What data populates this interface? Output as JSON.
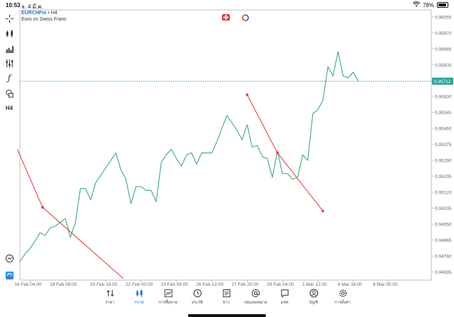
{
  "status_bar": {
    "time": "10:53",
    "date": "จ. 4 มี.ค.",
    "battery": "78%",
    "battery_level": 0.78
  },
  "header": {
    "symbol": "EURCHFm",
    "separator": " • ",
    "timeframe": "H4",
    "description": "Euro vs Swiss Franc"
  },
  "toolbar": [
    {
      "name": "crosshair-icon"
    },
    {
      "name": "candles-icon"
    },
    {
      "name": "bar-chart-icon"
    },
    {
      "name": "indicators-icon"
    },
    {
      "name": "function-icon",
      "glyph": "ƒ"
    },
    {
      "name": "objects-icon"
    },
    {
      "name": "timeframe-button",
      "label": "H4"
    }
  ],
  "colors": {
    "line": "#4caf8a",
    "current_price": "#26a69a",
    "trendline": "#e53935",
    "accent": "#1a73e8"
  },
  "chart_data": {
    "type": "line",
    "current_price": "0.95712",
    "y_ticks": [
      "0.96055",
      "0.95970",
      "0.95885",
      "0.95800",
      "0.95715",
      "0.95630",
      "0.95545",
      "0.95460",
      "0.95375",
      "0.95290",
      "0.95205",
      "0.95120",
      "0.95035",
      "0.94950",
      "0.94865",
      "0.94780",
      "0.94695"
    ],
    "x_ticks": [
      "16 Feb 04:00",
      "19 Feb 08:00",
      "20 Feb 16:00",
      "22 Feb 00:00",
      "23 Feb 08:00",
      "26 Feb 12:00",
      "27 Feb 20:00",
      "29 Feb 04:00",
      "1 Mar 12:00",
      "4 Mar 16:00",
      "6 Mar 00:00"
    ],
    "x_tick_index": [
      2,
      9,
      17,
      24,
      31,
      38,
      45,
      52,
      59,
      66,
      73
    ],
    "ylim": [
      0.94652,
      0.96092
    ],
    "series": [
      {
        "values": [
          0.9475,
          0.9479,
          0.9482,
          0.9486,
          0.94905,
          0.9489,
          0.9493,
          0.9494,
          0.9496,
          0.9498,
          0.9488,
          0.9496,
          0.9514,
          0.9514,
          0.9508,
          0.9517,
          0.9521,
          0.9525,
          0.9529,
          0.9533,
          0.9524,
          0.9519,
          0.9506,
          0.9515,
          0.9515,
          0.9513,
          0.9513,
          0.9507,
          0.9528,
          0.9532,
          0.9535,
          0.953,
          0.9526,
          0.9532,
          0.9533,
          0.9527,
          0.9533,
          0.9533,
          0.9533,
          0.9539,
          0.9546,
          0.9553,
          0.9549,
          0.9545,
          0.954,
          0.9548,
          0.9536,
          0.9537,
          0.9531,
          0.953,
          0.952,
          0.9534,
          0.9522,
          0.9522,
          0.9519,
          0.952,
          0.9532,
          0.9529,
          0.9554,
          0.9556,
          0.9561,
          0.9579,
          0.9574,
          0.9587,
          0.9574,
          0.9573,
          0.9576,
          0.95712
        ]
      }
    ],
    "trendlines": [
      {
        "points": [
          [
            -0.5,
            0.9535
          ],
          [
            4.5,
            0.9504
          ],
          [
            20.5,
            0.9466
          ]
        ]
      },
      {
        "points": [
          [
            45,
            0.9564
          ],
          [
            51,
            0.9533
          ],
          [
            60,
            0.9502
          ]
        ]
      }
    ]
  },
  "nav": [
    {
      "name": "nav-quotes",
      "label": "ราคา",
      "icon": "arrows-icon"
    },
    {
      "name": "nav-chart",
      "label": "กราฟ",
      "icon": "chart-icon",
      "active": true
    },
    {
      "name": "nav-trade",
      "label": "การซื้อขาย",
      "icon": "trade-icon"
    },
    {
      "name": "nav-history",
      "label": "ประวัติ",
      "icon": "history-icon"
    },
    {
      "name": "nav-news",
      "label": "ข่าว",
      "icon": "news-icon"
    },
    {
      "name": "nav-mailbox",
      "label": "กล่องจดหมาย",
      "icon": "mail-icon"
    },
    {
      "name": "nav-chat",
      "label": "แชท",
      "icon": "chat-icon"
    },
    {
      "name": "nav-accounts",
      "label": "บัญชี",
      "icon": "account-icon"
    },
    {
      "name": "nav-settings",
      "label": "การตั้งค่า",
      "icon": "settings-icon"
    }
  ]
}
